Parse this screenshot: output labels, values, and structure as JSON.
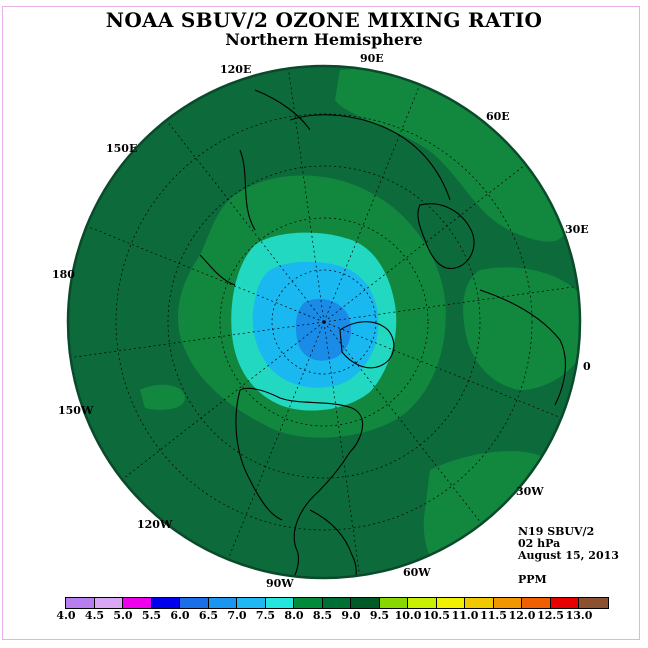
{
  "title": "NOAA SBUV/2 OZONE MIXING RATIO",
  "subtitle": "Northern Hemisphere",
  "longitude_labels": {
    "e90": "90E",
    "e120": "120E",
    "e60": "60E",
    "e150": "150E",
    "e30": "30E",
    "e180": "180",
    "e0": "0",
    "w150": "150W",
    "w30": "30W",
    "w120": "120W",
    "w60": "60W",
    "w90": "90W"
  },
  "info": {
    "instrument": "N19 SBUV/2",
    "level": "02 hPa",
    "date": "August 15, 2013",
    "units": "PPM"
  },
  "colorbar": {
    "ticks": [
      "4.0",
      "4.5",
      "5.0",
      "5.5",
      "6.0",
      "6.5",
      "7.0",
      "7.5",
      "8.0",
      "8.5",
      "9.0",
      "9.5",
      "10.0",
      "10.5",
      "11.0",
      "11.5",
      "12.0",
      "12.5",
      "13.0"
    ],
    "colors": [
      "#b87ef0",
      "#d9a8f4",
      "#ee00ee",
      "#0000ee",
      "#1a6fe8",
      "#1a95f0",
      "#20b8f4",
      "#25e6dc",
      "#008a3a",
      "#006f33",
      "#005a28",
      "#88d800",
      "#c8f000",
      "#f0f000",
      "#f0c800",
      "#f09600",
      "#f06000",
      "#e60000",
      "#8b5030"
    ]
  },
  "map": {
    "background_level_color": "#0d6b3b",
    "band_color": "#12883f",
    "band_light_color": "#1f9a48",
    "ring_color": "#22d8c0",
    "inner_color": "#1ab8f0",
    "core_color": "#1a8ce8",
    "land_outline_color": "#000000"
  }
}
